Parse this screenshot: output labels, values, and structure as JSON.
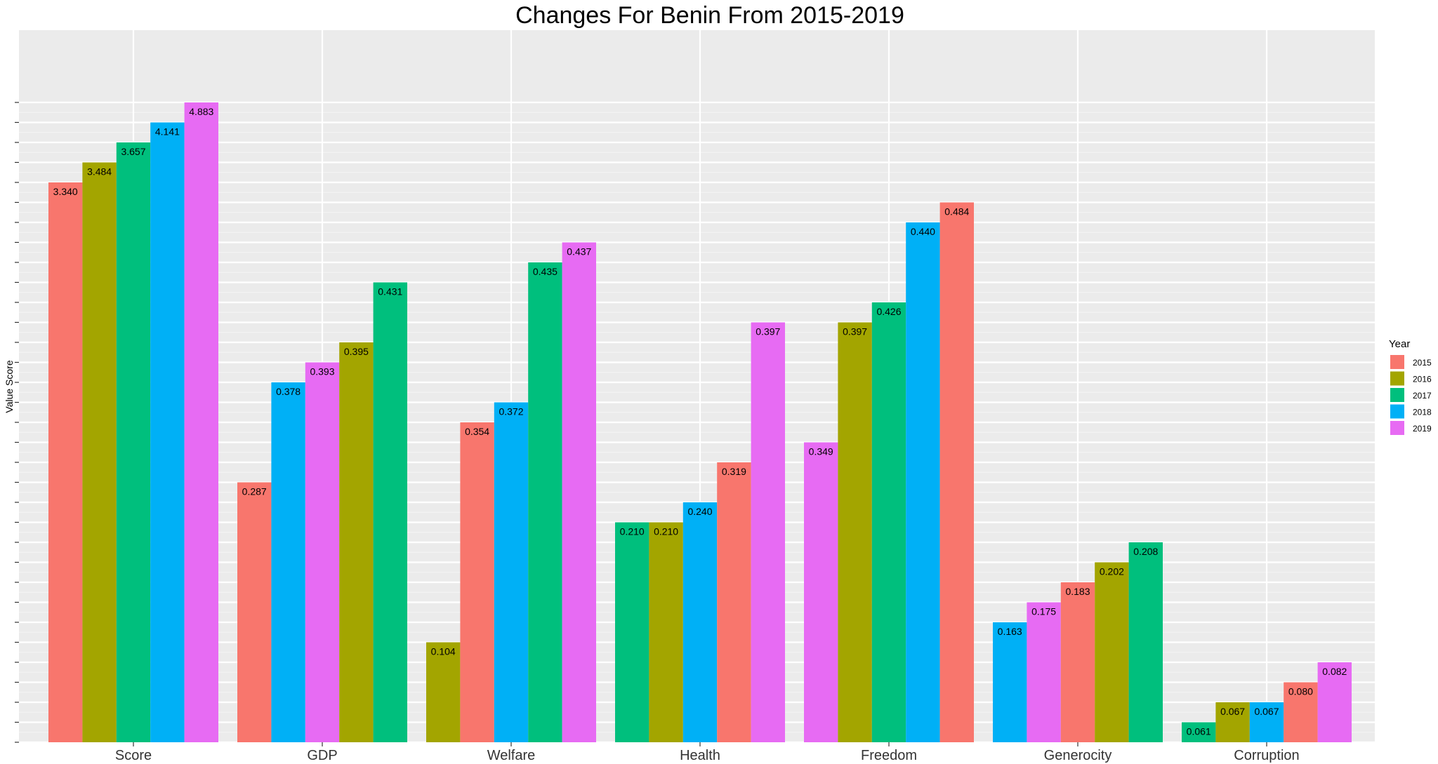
{
  "chart_data": {
    "type": "bar",
    "title": "Changes For Benin From 2015-2019",
    "xlabel": "",
    "ylabel": "Value Score",
    "grid": true,
    "legend": {
      "title": "Year",
      "position": "right"
    },
    "colors": {
      "2015": "#F8766D",
      "2016": "#A3A500",
      "2017": "#00BF7D",
      "2018": "#00B0F6",
      "2019": "#E76BF3"
    },
    "legend_entries": [
      "2015",
      "2016",
      "2017",
      "2018",
      "2019"
    ],
    "categories": [
      {
        "name": "Score",
        "bars": [
          {
            "year": "2015",
            "value": 3.34,
            "label": "3.340"
          },
          {
            "year": "2016",
            "value": 3.484,
            "label": "3.484"
          },
          {
            "year": "2017",
            "value": 3.657,
            "label": "3.657"
          },
          {
            "year": "2018",
            "value": 4.141,
            "label": "4.141"
          },
          {
            "year": "2019",
            "value": 4.883,
            "label": "4.883"
          }
        ]
      },
      {
        "name": "GDP",
        "bars": [
          {
            "year": "2015",
            "value": 0.287,
            "label": "0.287"
          },
          {
            "year": "2018",
            "value": 0.378,
            "label": "0.378"
          },
          {
            "year": "2019",
            "value": 0.393,
            "label": "0.393"
          },
          {
            "year": "2016",
            "value": 0.395,
            "label": "0.395"
          },
          {
            "year": "2017",
            "value": 0.431,
            "label": "0.431"
          }
        ]
      },
      {
        "name": "Welfare",
        "bars": [
          {
            "year": "2016",
            "value": 0.104,
            "label": "0.104"
          },
          {
            "year": "2015",
            "value": 0.354,
            "label": "0.354"
          },
          {
            "year": "2018",
            "value": 0.372,
            "label": "0.372"
          },
          {
            "year": "2017",
            "value": 0.435,
            "label": "0.435"
          },
          {
            "year": "2019",
            "value": 0.437,
            "label": "0.437"
          }
        ]
      },
      {
        "name": "Health",
        "bars": [
          {
            "year": "2017",
            "value": 0.21,
            "label": "0.210"
          },
          {
            "year": "2016",
            "value": 0.21,
            "label": "0.210"
          },
          {
            "year": "2018",
            "value": 0.24,
            "label": "0.240"
          },
          {
            "year": "2015",
            "value": 0.319,
            "label": "0.319"
          },
          {
            "year": "2019",
            "value": 0.397,
            "label": "0.397"
          }
        ]
      },
      {
        "name": "Freedom",
        "bars": [
          {
            "year": "2019",
            "value": 0.349,
            "label": "0.349"
          },
          {
            "year": "2016",
            "value": 0.397,
            "label": "0.397"
          },
          {
            "year": "2017",
            "value": 0.426,
            "label": "0.426"
          },
          {
            "year": "2018",
            "value": 0.44,
            "label": "0.440"
          },
          {
            "year": "2015",
            "value": 0.484,
            "label": "0.484"
          }
        ]
      },
      {
        "name": "Generocity",
        "bars": [
          {
            "year": "2018",
            "value": 0.163,
            "label": "0.163"
          },
          {
            "year": "2019",
            "value": 0.175,
            "label": "0.175"
          },
          {
            "year": "2015",
            "value": 0.183,
            "label": "0.183"
          },
          {
            "year": "2016",
            "value": 0.202,
            "label": "0.202"
          },
          {
            "year": "2017",
            "value": 0.208,
            "label": "0.208"
          }
        ]
      },
      {
        "name": "Corruption",
        "bars": [
          {
            "year": "2017",
            "value": 0.061,
            "label": "0.061"
          },
          {
            "year": "2016",
            "value": 0.067,
            "label": "0.067"
          },
          {
            "year": "2018",
            "value": 0.067,
            "label": "0.067"
          },
          {
            "year": "2015",
            "value": 0.08,
            "label": "0.080"
          },
          {
            "year": "2019",
            "value": 0.082,
            "label": "0.082"
          }
        ]
      }
    ]
  }
}
